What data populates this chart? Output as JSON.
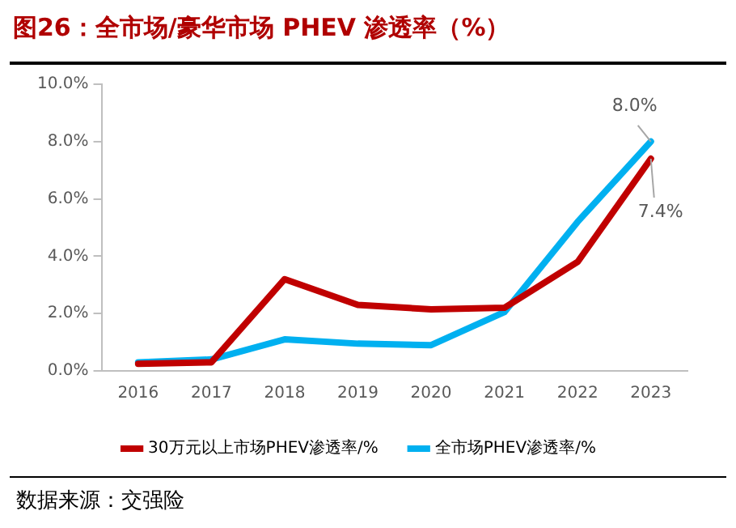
{
  "chart_data": {
    "type": "line",
    "title": "图26：全市场/豪华市场 PHEV 渗透率（%）",
    "categories": [
      "2016",
      "2017",
      "2018",
      "2019",
      "2020",
      "2021",
      "2022",
      "2023"
    ],
    "series": [
      {
        "name": "30万元以上市场PHEV渗透率/%",
        "color": "#c00000",
        "values": [
          0.25,
          0.3,
          3.2,
          2.3,
          2.15,
          2.2,
          3.8,
          7.4
        ]
      },
      {
        "name": "全市场PHEV渗透率/%",
        "color": "#00b0f0",
        "values": [
          0.3,
          0.4,
          1.1,
          0.95,
          0.9,
          2.05,
          5.2,
          8.0
        ]
      }
    ],
    "ylim": [
      0,
      10
    ],
    "yticks": [
      {
        "value": 0,
        "label": "0.0%"
      },
      {
        "value": 2,
        "label": "2.0%"
      },
      {
        "value": 4,
        "label": "4.0%"
      },
      {
        "value": 6,
        "label": "6.0%"
      },
      {
        "value": 8,
        "label": "8.0%"
      },
      {
        "value": 10,
        "label": "10.0%"
      }
    ],
    "grid": false,
    "legend": "bottom",
    "marker": "none",
    "line_style": "solid",
    "annotations": [
      {
        "text": "8.0%",
        "x": "2023",
        "y": 8.0
      },
      {
        "text": "7.4%",
        "x": "2023",
        "y": 7.4
      },
      "数据来源：交强险"
    ]
  }
}
